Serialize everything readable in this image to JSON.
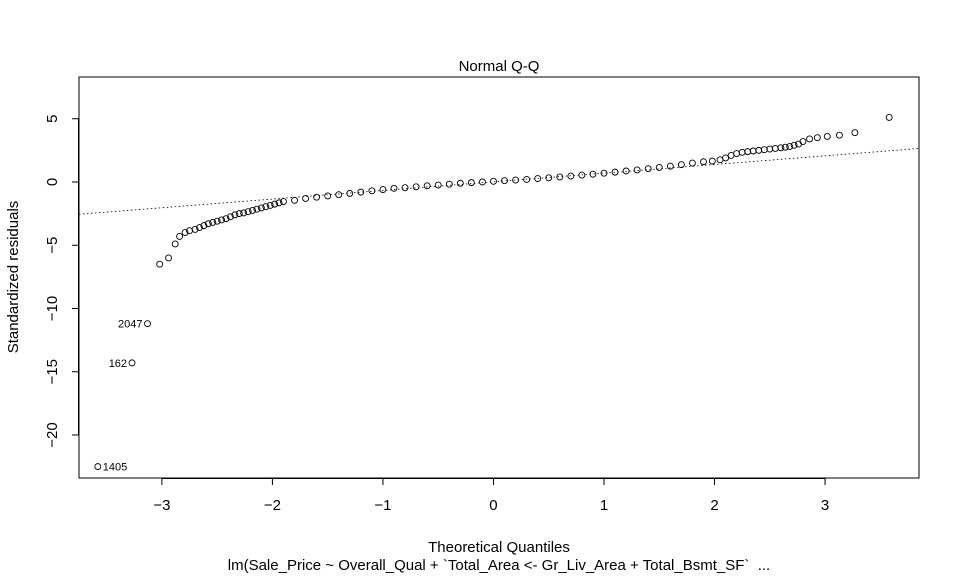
{
  "chart_data": {
    "type": "scatter",
    "title": "Normal Q-Q",
    "xlabel": "Theoretical Quantiles",
    "ylabel": "Standardized residuals",
    "subtitle": "lm(Sale_Price ~ Overall_Qual + `Total_Area <- Gr_Liv_Area + Total_Bsmt_SF`  ...",
    "xlim": [
      -3.75,
      3.85
    ],
    "ylim": [
      -23.4,
      8.3
    ],
    "x_ticks": [
      -3,
      -2,
      -1,
      0,
      1,
      2,
      3
    ],
    "y_ticks": [
      5,
      0,
      -5,
      -10,
      -15,
      -20
    ],
    "grid": false,
    "reference_line": {
      "style": "dotted",
      "x": [
        -3.75,
        3.85
      ],
      "y": [
        -2.55,
        2.65
      ]
    },
    "series": [
      {
        "markers": "open-circle",
        "x": [
          -3.58,
          -3.27,
          -3.13,
          -3.02,
          -2.94,
          -2.88,
          -2.84,
          -2.79,
          -2.75,
          -2.7,
          -2.66,
          -2.62,
          -2.58,
          -2.54,
          -2.5,
          -2.46,
          -2.42,
          -2.38,
          -2.34,
          -2.3,
          -2.26,
          -2.22,
          -2.18,
          -2.14,
          -2.1,
          -2.06,
          -2.02,
          -1.98,
          -1.94,
          -1.9,
          -1.8,
          -1.7,
          -1.6,
          -1.5,
          -1.4,
          -1.3,
          -1.2,
          -1.1,
          -1.0,
          -0.9,
          -0.8,
          -0.7,
          -0.6,
          -0.5,
          -0.4,
          -0.3,
          -0.2,
          -0.1,
          0.0,
          0.1,
          0.2,
          0.3,
          0.4,
          0.5,
          0.6,
          0.7,
          0.8,
          0.9,
          1.0,
          1.1,
          1.2,
          1.3,
          1.4,
          1.5,
          1.6,
          1.7,
          1.8,
          1.9,
          1.98,
          2.05,
          2.1,
          2.15,
          2.2,
          2.25,
          2.3,
          2.35,
          2.4,
          2.45,
          2.5,
          2.55,
          2.6,
          2.64,
          2.68,
          2.72,
          2.76,
          2.8,
          2.86,
          2.93,
          3.02,
          3.13,
          3.27,
          3.58
        ],
        "y": [
          -22.5,
          -14.3,
          -11.2,
          -6.5,
          -6.0,
          -4.9,
          -4.3,
          -4.0,
          -3.85,
          -3.75,
          -3.6,
          -3.45,
          -3.3,
          -3.2,
          -3.1,
          -3.0,
          -2.9,
          -2.75,
          -2.6,
          -2.5,
          -2.45,
          -2.35,
          -2.25,
          -2.15,
          -2.05,
          -1.95,
          -1.85,
          -1.75,
          -1.65,
          -1.55,
          -1.45,
          -1.3,
          -1.2,
          -1.1,
          -1.0,
          -0.9,
          -0.8,
          -0.7,
          -0.6,
          -0.5,
          -0.45,
          -0.38,
          -0.3,
          -0.24,
          -0.17,
          -0.1,
          -0.05,
          0.0,
          0.05,
          0.1,
          0.15,
          0.2,
          0.27,
          0.33,
          0.4,
          0.47,
          0.55,
          0.62,
          0.7,
          0.78,
          0.87,
          0.95,
          1.05,
          1.15,
          1.25,
          1.37,
          1.5,
          1.6,
          1.65,
          1.75,
          1.9,
          2.1,
          2.25,
          2.35,
          2.4,
          2.45,
          2.5,
          2.55,
          2.6,
          2.65,
          2.7,
          2.75,
          2.8,
          2.9,
          3.0,
          3.2,
          3.4,
          3.5,
          3.6,
          3.7,
          3.9,
          5.1
        ]
      }
    ],
    "annotations": [
      {
        "text": "1405",
        "x": -3.58,
        "y": -22.5,
        "side": "right"
      },
      {
        "text": "162",
        "x": -3.27,
        "y": -14.3,
        "side": "left"
      },
      {
        "text": "2047",
        "x": -3.13,
        "y": -11.2,
        "side": "left"
      }
    ]
  }
}
